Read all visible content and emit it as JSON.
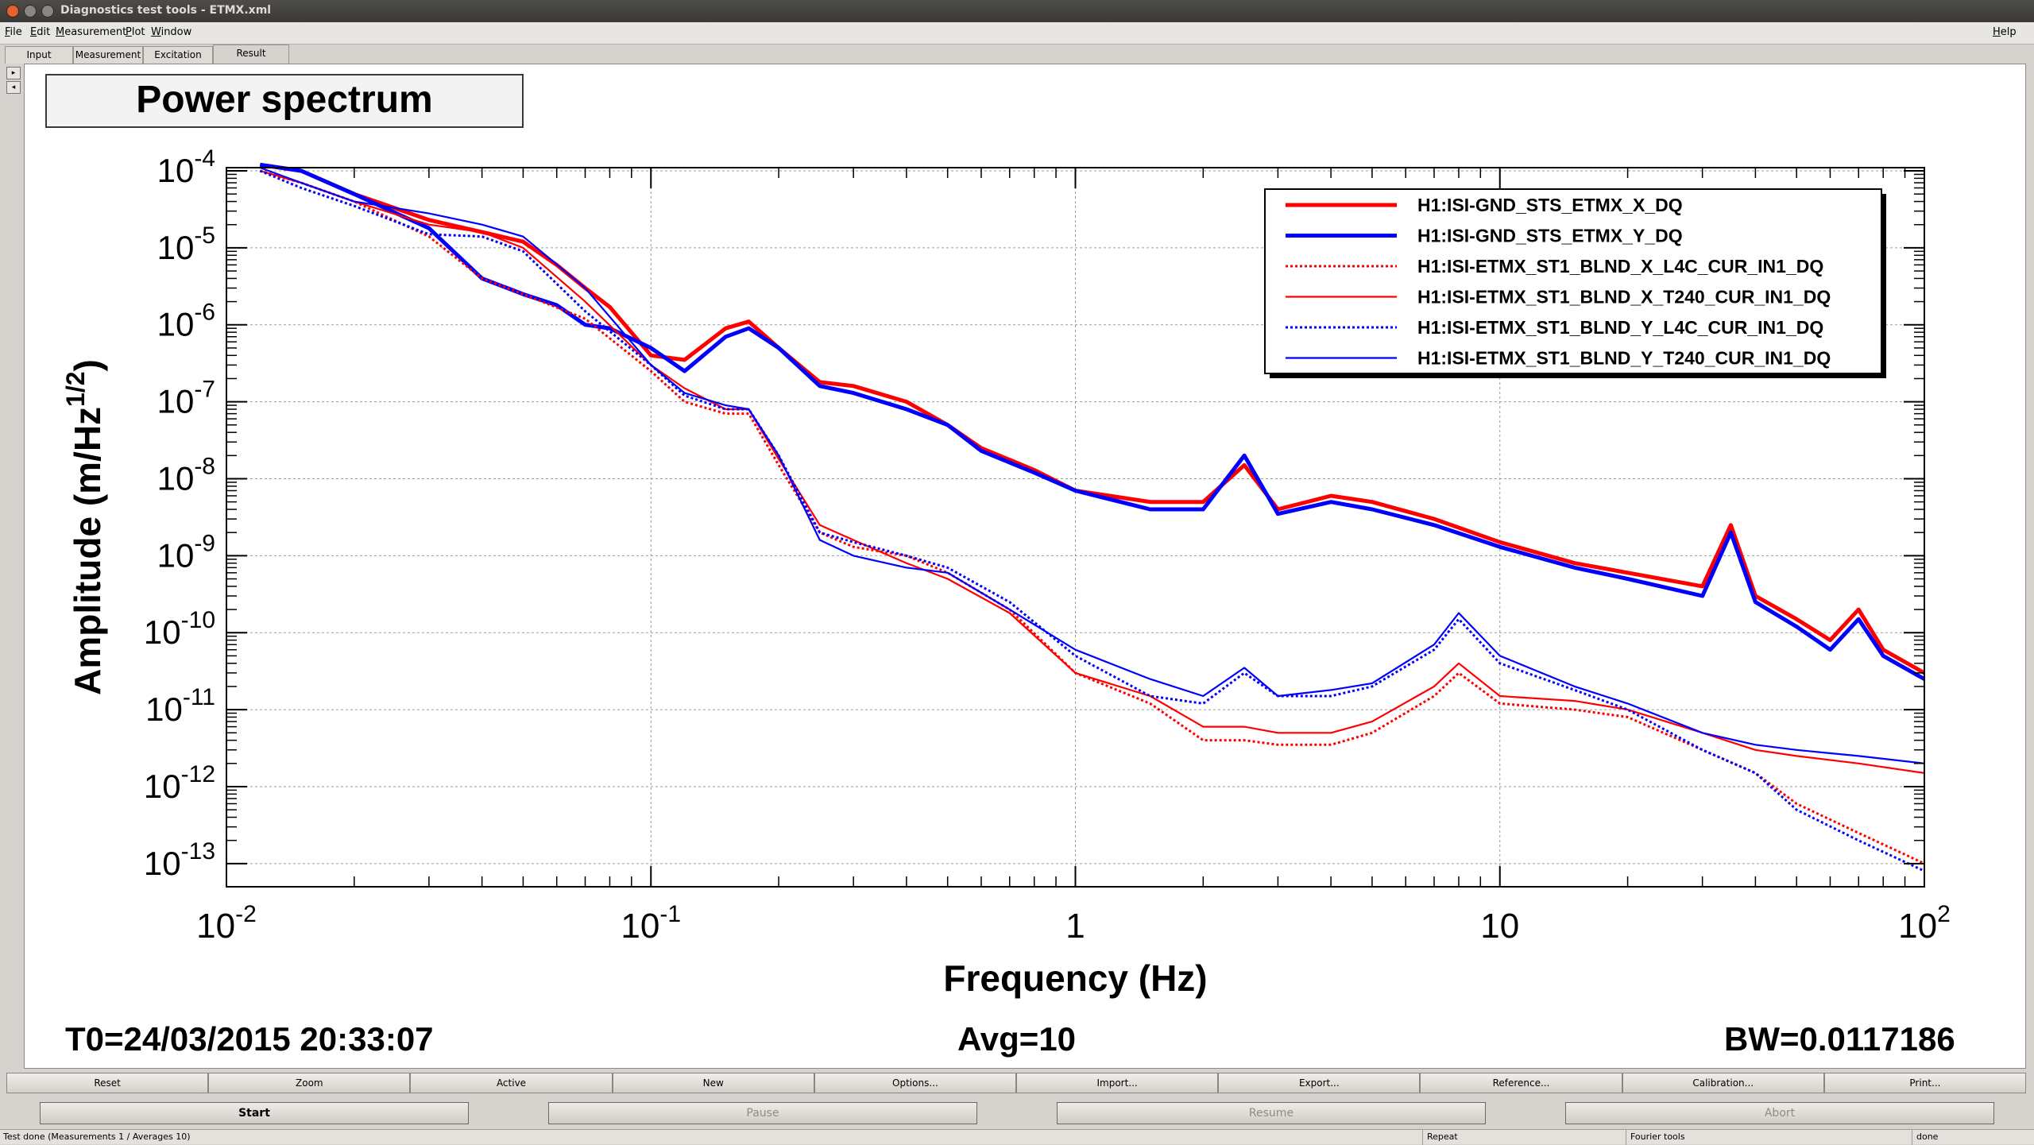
{
  "window": {
    "title": "Diagnostics test tools - ETMX.xml"
  },
  "menu": {
    "items": [
      "File",
      "Edit",
      "Measurement",
      "Plot",
      "Window"
    ],
    "help": "Help"
  },
  "tabs": [
    "Input",
    "Measurement",
    "Excitation",
    "Result"
  ],
  "plot": {
    "title": "Power spectrum"
  },
  "footer": {
    "t0": "T0=24/03/2015 20:33:07",
    "avg": "Avg=10",
    "bw": "BW=0.0117186"
  },
  "buttons_row1": [
    "Reset",
    "Zoom",
    "Active",
    "New",
    "Options...",
    "Import...",
    "Export...",
    "Reference...",
    "Calibration...",
    "Print..."
  ],
  "buttons_row2": [
    "Start",
    "Pause",
    "Resume",
    "Abort"
  ],
  "status": {
    "left": "Test done (Measurements 1 / Averages 10)",
    "repeat": "Repeat",
    "tool": "Fourier tools",
    "state": "done"
  },
  "colors": {
    "red": "#ff0000",
    "blue": "#0000ff"
  },
  "chart_data": {
    "type": "line",
    "title": "",
    "xlabel": "Frequency (Hz)",
    "ylabel": "Amplitude (m/Hz^1/2)",
    "xscale": "log",
    "yscale": "log",
    "xlim": [
      0.01,
      100
    ],
    "ylim": [
      5e-14,
      0.00011
    ],
    "xticks": [
      {
        "base": "10",
        "exp": "-2"
      },
      {
        "base": "10",
        "exp": "-1"
      },
      {
        "base": "1",
        "exp": ""
      },
      {
        "base": "10",
        "exp": ""
      },
      {
        "base": "10",
        "exp": "2"
      }
    ],
    "yticks": [
      "-4",
      "-5",
      "-6",
      "-7",
      "-8",
      "-9",
      "-10",
      "-11",
      "-12",
      "-13"
    ],
    "grid": true,
    "legend": "top-right",
    "series": [
      {
        "name": "H1:ISI-GND_STS_ETMX_X_DQ",
        "color": "#ff0000",
        "style": "thick",
        "x": [
          0.012,
          0.015,
          0.02,
          0.03,
          0.04,
          0.05,
          0.06,
          0.07,
          0.08,
          0.1,
          0.12,
          0.15,
          0.17,
          0.2,
          0.25,
          0.3,
          0.4,
          0.5,
          0.6,
          0.8,
          1,
          1.5,
          2,
          2.5,
          3,
          4,
          5,
          7,
          10,
          15,
          20,
          30,
          35,
          40,
          50,
          60,
          70,
          80,
          100
        ],
        "y": [
          0.00012,
          0.0001,
          5e-05,
          2.3e-05,
          1.6e-05,
          1.2e-05,
          6e-06,
          3e-06,
          1.7e-06,
          4e-07,
          3.5e-07,
          9e-07,
          1.1e-06,
          5e-07,
          1.8e-07,
          1.6e-07,
          1e-07,
          5e-08,
          2.5e-08,
          1.3e-08,
          7e-09,
          5e-09,
          5e-09,
          1.5e-08,
          4e-09,
          6e-09,
          5e-09,
          3e-09,
          1.5e-09,
          8e-10,
          6e-10,
          4e-10,
          2.5e-09,
          3e-10,
          1.5e-10,
          8e-11,
          2e-10,
          6e-11,
          3e-11
        ]
      },
      {
        "name": "H1:ISI-GND_STS_ETMX_Y_DQ",
        "color": "#0000ff",
        "style": "thick",
        "x": [
          0.012,
          0.015,
          0.02,
          0.03,
          0.04,
          0.05,
          0.06,
          0.07,
          0.08,
          0.1,
          0.12,
          0.15,
          0.17,
          0.2,
          0.25,
          0.3,
          0.4,
          0.5,
          0.6,
          0.8,
          1,
          1.5,
          2,
          2.5,
          3,
          4,
          5,
          7,
          10,
          15,
          20,
          30,
          35,
          40,
          50,
          60,
          70,
          80,
          100
        ],
        "y": [
          0.00012,
          0.0001,
          5e-05,
          1.8e-05,
          4e-06,
          2.5e-06,
          1.8e-06,
          1e-06,
          9e-07,
          5e-07,
          2.5e-07,
          7e-07,
          9e-07,
          5e-07,
          1.6e-07,
          1.3e-07,
          8e-08,
          5e-08,
          2.3e-08,
          1.2e-08,
          7e-09,
          4e-09,
          4e-09,
          2e-08,
          3.5e-09,
          5e-09,
          4e-09,
          2.5e-09,
          1.3e-09,
          7e-10,
          5e-10,
          3e-10,
          2e-09,
          2.5e-10,
          1.2e-10,
          6e-11,
          1.5e-10,
          5e-11,
          2.5e-11
        ]
      },
      {
        "name": "H1:ISI-ETMX_ST1_BLND_X_L4C_CUR_IN1_DQ",
        "color": "#ff0000",
        "style": "dotted",
        "x": [
          0.012,
          0.015,
          0.02,
          0.03,
          0.04,
          0.05,
          0.07,
          0.1,
          0.12,
          0.15,
          0.17,
          0.2,
          0.25,
          0.3,
          0.4,
          0.5,
          0.7,
          1,
          1.5,
          2,
          2.5,
          3,
          4,
          5,
          7,
          8,
          10,
          15,
          20,
          30,
          40,
          50,
          70,
          100
        ],
        "y": [
          0.0001,
          7e-05,
          4e-05,
          1.4e-05,
          4e-06,
          2.5e-06,
          1.2e-06,
          2.5e-07,
          1e-07,
          7e-08,
          7e-08,
          1.5e-08,
          2e-09,
          1.3e-09,
          1e-09,
          6e-10,
          2e-10,
          3e-11,
          1.2e-11,
          4e-12,
          4e-12,
          3.5e-12,
          3.5e-12,
          5e-12,
          1.5e-11,
          3e-11,
          1.2e-11,
          1e-11,
          8e-12,
          3e-12,
          1.5e-12,
          6e-13,
          2.5e-13,
          1e-13
        ]
      },
      {
        "name": "H1:ISI-ETMX_ST1_BLND_X_T240_CUR_IN1_DQ",
        "color": "#ff0000",
        "style": "thin",
        "x": [
          0.012,
          0.015,
          0.02,
          0.03,
          0.04,
          0.05,
          0.07,
          0.1,
          0.12,
          0.15,
          0.17,
          0.2,
          0.25,
          0.3,
          0.4,
          0.5,
          0.7,
          1,
          1.5,
          2,
          2.5,
          3,
          4,
          5,
          7,
          8,
          10,
          15,
          20,
          30,
          40,
          50,
          70,
          100
        ],
        "y": [
          0.0001,
          7e-05,
          4e-05,
          2e-05,
          1.6e-05,
          1e-05,
          2e-06,
          3e-07,
          1.5e-07,
          8e-08,
          8e-08,
          1.8e-08,
          2.5e-09,
          1.6e-09,
          8e-10,
          5e-10,
          1.8e-10,
          3e-11,
          1.5e-11,
          6e-12,
          6e-12,
          5e-12,
          5e-12,
          7e-12,
          2e-11,
          4e-11,
          1.5e-11,
          1.3e-11,
          1e-11,
          5e-12,
          3e-12,
          2.5e-12,
          2e-12,
          1.5e-12
        ]
      },
      {
        "name": "H1:ISI-ETMX_ST1_BLND_Y_L4C_CUR_IN1_DQ",
        "color": "#0000ff",
        "style": "dotted",
        "x": [
          0.012,
          0.015,
          0.02,
          0.03,
          0.04,
          0.05,
          0.07,
          0.1,
          0.12,
          0.15,
          0.17,
          0.2,
          0.25,
          0.3,
          0.4,
          0.5,
          0.7,
          1,
          1.5,
          2,
          2.5,
          3,
          4,
          5,
          7,
          8,
          10,
          15,
          20,
          30,
          40,
          50,
          70,
          100
        ],
        "y": [
          0.0001,
          6e-05,
          3.5e-05,
          1.5e-05,
          1.4e-05,
          9e-06,
          1.5e-06,
          3e-07,
          1.2e-07,
          8e-08,
          8e-08,
          2e-08,
          2e-09,
          1.5e-09,
          1e-09,
          7e-10,
          2.5e-10,
          5e-11,
          1.5e-11,
          1.2e-11,
          3e-11,
          1.5e-11,
          1.5e-11,
          2e-11,
          6e-11,
          1.5e-10,
          4e-11,
          1.8e-11,
          1e-11,
          3e-12,
          1.5e-12,
          5e-13,
          2e-13,
          8e-14
        ]
      },
      {
        "name": "H1:ISI-ETMX_ST1_BLND_Y_T240_CUR_IN1_DQ",
        "color": "#0000ff",
        "style": "thin",
        "x": [
          0.012,
          0.015,
          0.02,
          0.03,
          0.04,
          0.05,
          0.07,
          0.1,
          0.12,
          0.15,
          0.17,
          0.2,
          0.25,
          0.3,
          0.4,
          0.5,
          0.7,
          1,
          1.5,
          2,
          2.5,
          3,
          4,
          5,
          7,
          8,
          10,
          15,
          20,
          30,
          40,
          50,
          70,
          100
        ],
        "y": [
          0.00011,
          7e-05,
          4e-05,
          2.8e-05,
          2e-05,
          1.4e-05,
          3e-06,
          3e-07,
          1.3e-07,
          9e-08,
          8e-08,
          2e-08,
          1.6e-09,
          1e-09,
          7e-10,
          6e-10,
          2e-10,
          6e-11,
          2.5e-11,
          1.5e-11,
          3.5e-11,
          1.5e-11,
          1.8e-11,
          2.2e-11,
          7e-11,
          1.8e-10,
          5e-11,
          2e-11,
          1.2e-11,
          5e-12,
          3.5e-12,
          3e-12,
          2.5e-12,
          2e-12
        ]
      }
    ]
  }
}
